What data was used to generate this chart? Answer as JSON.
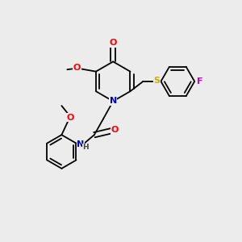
{
  "bg_color": "#ececec",
  "bond_color": "#000000",
  "bond_lw": 1.3,
  "atom_colors": {
    "O": "#ff0000",
    "N": "#0000cd",
    "S": "#ccaa00",
    "F": "#cc00cc",
    "C": "#000000",
    "H": "#444444"
  },
  "label_fontsize": 8.0,
  "label_sub_fontsize": 6.5
}
